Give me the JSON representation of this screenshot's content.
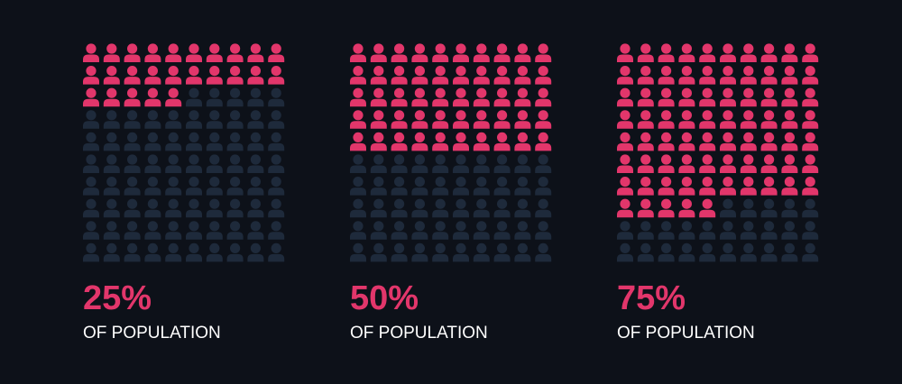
{
  "chart_data": [
    {
      "type": "waffle",
      "value": 25,
      "value_label": "25%",
      "label": "OF POPULATION",
      "color": "#e2366b",
      "empty_color": "#1e2a3b"
    },
    {
      "type": "waffle",
      "value": 50,
      "value_label": "50%",
      "label": "OF POPULATION",
      "color": "#e2366b",
      "empty_color": "#1e2a3b"
    },
    {
      "type": "waffle",
      "value": 75,
      "value_label": "75%",
      "label": "OF POPULATION",
      "color": "#e2366b",
      "empty_color": "#1e2a3b"
    }
  ]
}
